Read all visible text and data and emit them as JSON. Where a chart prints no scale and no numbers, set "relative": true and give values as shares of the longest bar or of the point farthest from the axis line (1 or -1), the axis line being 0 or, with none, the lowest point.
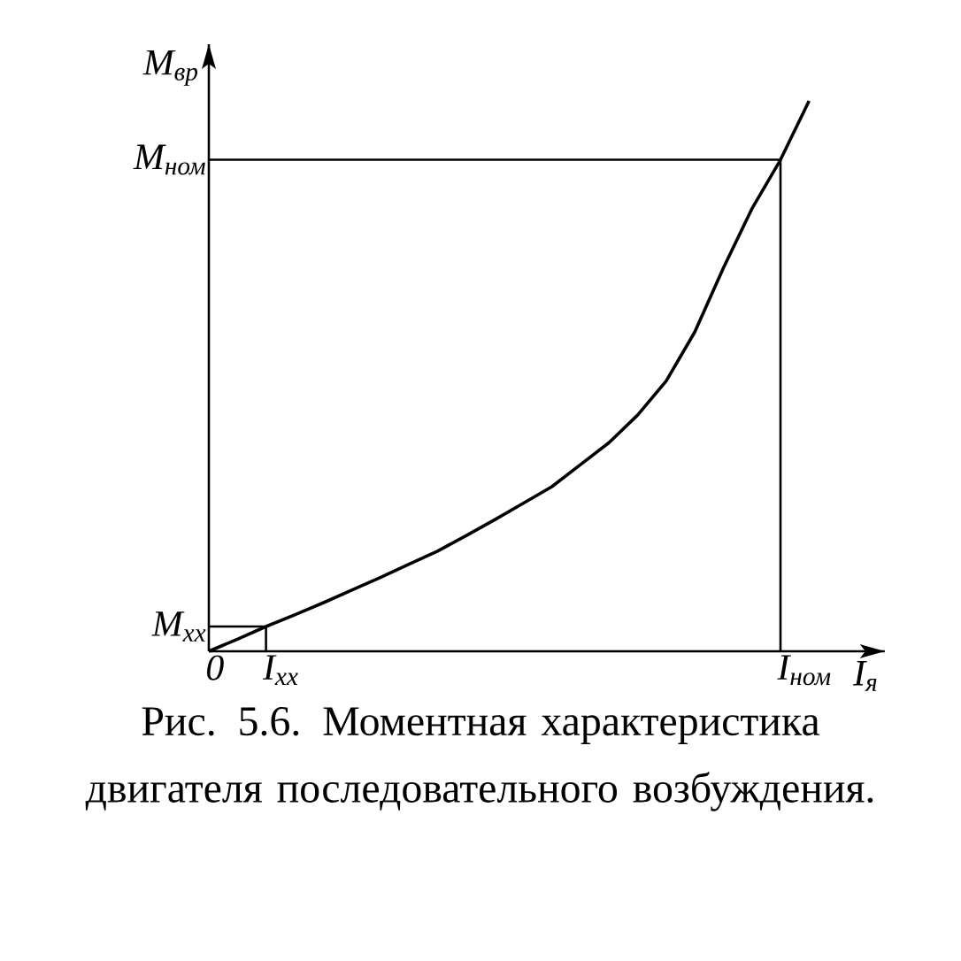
{
  "chart_data": {
    "type": "line",
    "relative": true,
    "xlabel": "I$_{я}$",
    "ylabel": "M$_{вр}$",
    "categories": [
      null,
      null,
      null,
      null,
      null,
      null,
      null,
      null,
      null,
      null,
      null,
      null,
      null,
      null,
      null,
      null,
      null,
      null,
      null,
      null,
      null,
      null
    ],
    "series": [
      {
        "color": "#000000",
        "values": [
          0,
          0.022,
          0.045,
          0.066,
          0.088,
          0.111,
          0.134,
          0.158,
          0.182,
          0.21,
          0.239,
          0.269,
          0.299,
          0.339,
          0.379,
          0.429,
          0.491,
          0.58,
          0.696,
          0.804,
          0.893,
          1
        ]
      }
    ],
    "ref_lines": [
      {
        "axis": "y",
        "value": 0.893,
        "label": "M$_{ном}$"
      },
      {
        "axis": "y",
        "value": 0.045,
        "label": "M$_{xx}$"
      }
    ],
    "marker": "none",
    "line_style": "solid",
    "annotations": [
      "0",
      "I$_{ном}$",
      "I$_{xx}$",
      "Рис. 5.6. Моментная характеристика двигателя последовательного возбуждения."
    ]
  }
}
